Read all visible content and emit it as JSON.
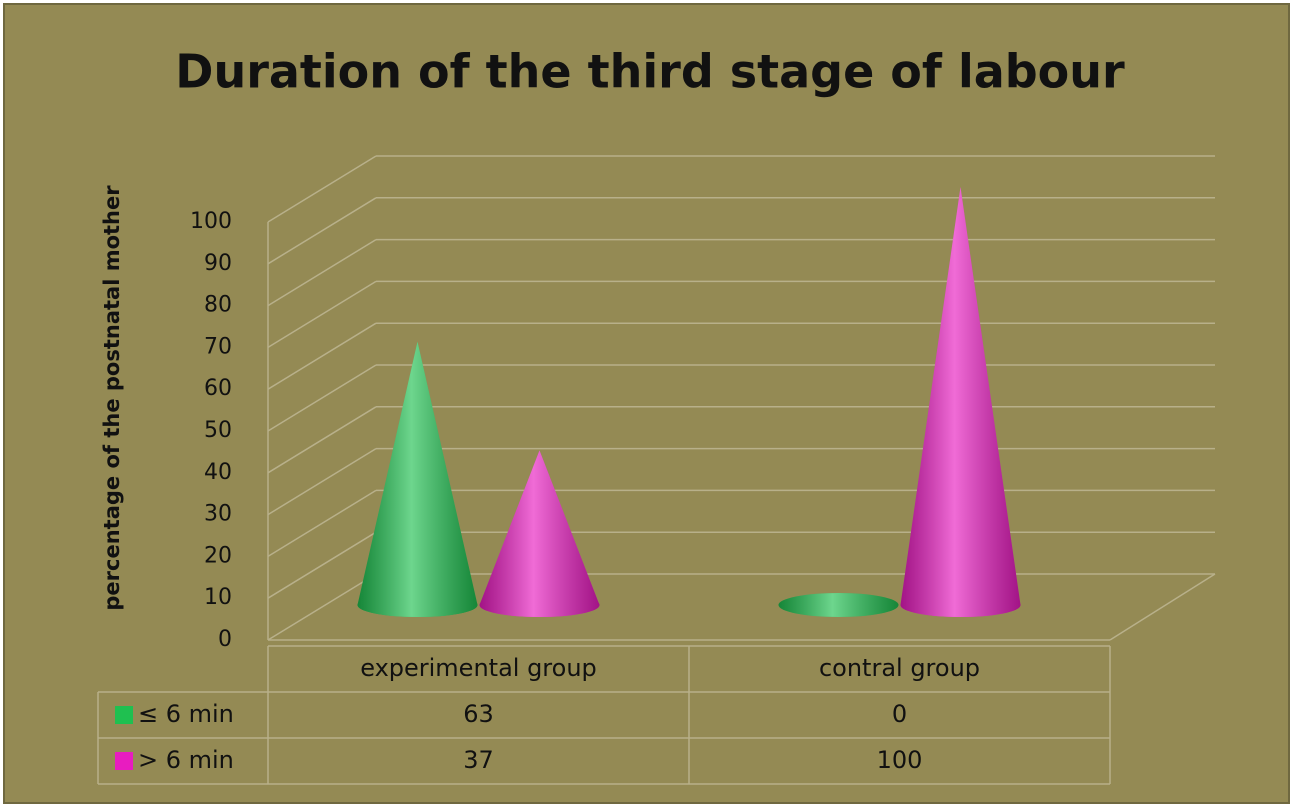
{
  "chart_data": {
    "type": "cone3d",
    "title": "Duration of the third stage of labour",
    "y_label": "percentage of the postnatal mother",
    "categories": [
      "experimental group",
      "contral group"
    ],
    "series": [
      {
        "name": "≤ 6 min",
        "color": "#1fc050",
        "values": [
          63,
          0
        ]
      },
      {
        "name": "> 6 min",
        "color": "#e81cc0",
        "values": [
          37,
          100
        ]
      }
    ],
    "ylim": [
      0,
      100
    ],
    "yticks": [
      0,
      10,
      20,
      30,
      40,
      50,
      60,
      70,
      80,
      90,
      100
    ],
    "grid": true,
    "data_table": true
  }
}
